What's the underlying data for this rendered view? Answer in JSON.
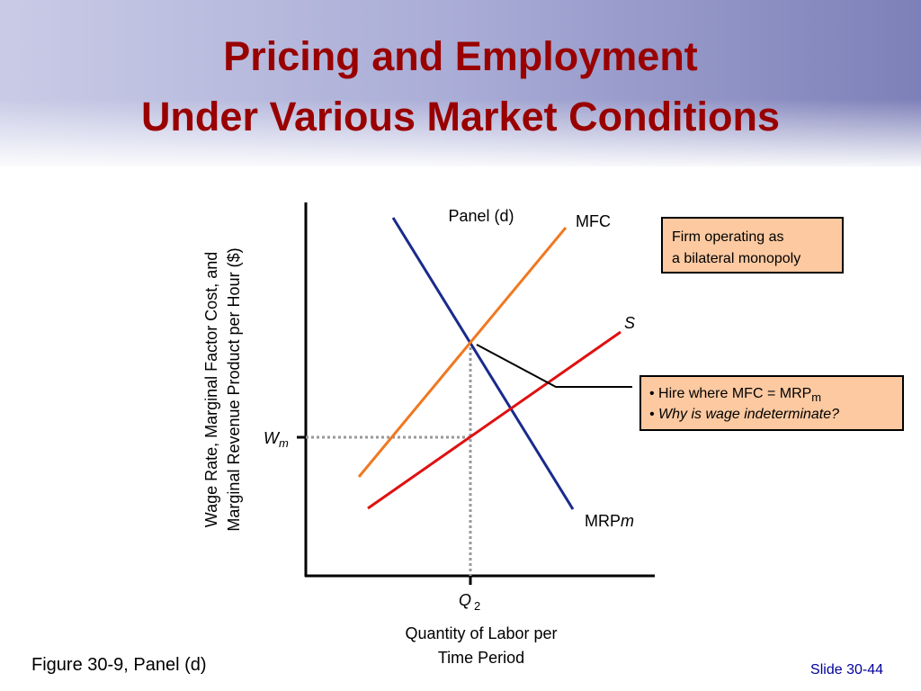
{
  "header": {
    "title_lines": [
      "Pricing and Employment",
      "Under Various Market Conditions"
    ]
  },
  "diagram": {
    "panel_label": "Panel (d)",
    "y_axis_label_lines": [
      "Wage Rate, Marginal Factor Cost, and",
      "Marginal Revenue Product per Hour ($)"
    ],
    "x_axis_label_lines": [
      "Quantity of Labor per",
      "Time Period"
    ],
    "mfc_label": "MFC",
    "supply_label": "S",
    "mrp_label": "MRP",
    "mrp_subscript": "m",
    "wage_label": "W",
    "wage_subscript": "m",
    "quantity_label": "Q",
    "quantity_subscript": "2"
  },
  "callouts": [
    {
      "lines": [
        "Firm operating as",
        "a bilateral monopoly"
      ]
    },
    {
      "line1": "• Hire where MFC = MRP",
      "line1_subscript": "m",
      "line2": "• Why is wage indeterminate?"
    }
  ],
  "footer": {
    "figure": "Figure 30-9, Panel (d)",
    "slide": "Slide 30-44"
  }
}
